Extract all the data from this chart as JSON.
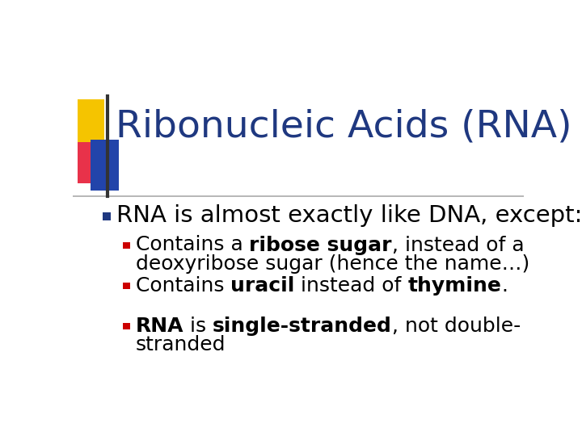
{
  "title": "Ribonucleic Acids (RNA)",
  "title_color": "#1F3880",
  "title_fontsize": 34,
  "background_color": "#FFFFFF",
  "bullet_color": "#1F3880",
  "sub_bullet_color": "#CC0000",
  "main_bullet_text": "RNA is almost exactly like DNA, except:",
  "main_bullet_fontsize": 21,
  "sub_bullet_fontsize": 18,
  "sub_items": [
    [
      {
        "text": "Contains a ",
        "bold": false
      },
      {
        "text": "ribose sugar",
        "bold": true
      },
      {
        "text": ", instead of a",
        "bold": false
      },
      {
        "newline": true
      },
      {
        "text": "deoxyribose sugar (hence the name…)",
        "bold": false
      }
    ],
    [
      {
        "text": "Contains ",
        "bold": false
      },
      {
        "text": "uracil",
        "bold": true
      },
      {
        "text": " instead of ",
        "bold": false
      },
      {
        "text": "thymine",
        "bold": true
      },
      {
        "text": ".",
        "bold": false
      }
    ],
    [
      {
        "text": "RNA",
        "bold": true
      },
      {
        "text": " is ",
        "bold": false
      },
      {
        "text": "single-stranded",
        "bold": true
      },
      {
        "text": ", not double-",
        "bold": false
      },
      {
        "newline": true
      },
      {
        "text": "stranded",
        "bold": false
      }
    ]
  ]
}
